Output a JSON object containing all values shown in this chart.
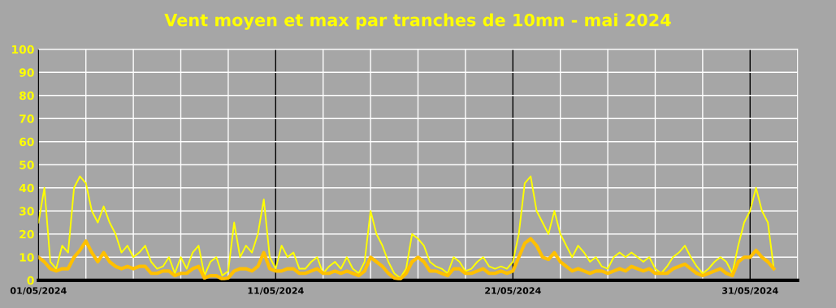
{
  "chart_data": {
    "type": "line",
    "title": "Vent moyen et max par tranches de 10mn - mai 2024",
    "x": [
      "2024-05-01T00:00",
      "2024-05-01T06:00",
      "2024-05-01T12:00",
      "2024-05-01T18:00",
      "2024-05-02T00:00",
      "2024-05-02T06:00",
      "2024-05-02T12:00",
      "2024-05-02T18:00",
      "2024-05-03T00:00",
      "2024-05-03T06:00",
      "2024-05-03T12:00",
      "2024-05-03T18:00",
      "2024-05-04T00:00",
      "2024-05-04T06:00",
      "2024-05-04T12:00",
      "2024-05-04T18:00",
      "2024-05-05T00:00",
      "2024-05-05T06:00",
      "2024-05-05T12:00",
      "2024-05-05T18:00",
      "2024-05-06T00:00",
      "2024-05-06T06:00",
      "2024-05-06T12:00",
      "2024-05-06T18:00",
      "2024-05-07T00:00",
      "2024-05-07T06:00",
      "2024-05-07T12:00",
      "2024-05-07T18:00",
      "2024-05-08T00:00",
      "2024-05-08T06:00",
      "2024-05-08T12:00",
      "2024-05-08T18:00",
      "2024-05-09T00:00",
      "2024-05-09T06:00",
      "2024-05-09T12:00",
      "2024-05-09T18:00",
      "2024-05-10T00:00",
      "2024-05-10T06:00",
      "2024-05-10T12:00",
      "2024-05-10T18:00",
      "2024-05-11T00:00",
      "2024-05-11T06:00",
      "2024-05-11T12:00",
      "2024-05-11T18:00",
      "2024-05-12T00:00",
      "2024-05-12T06:00",
      "2024-05-12T12:00",
      "2024-05-12T18:00",
      "2024-05-13T00:00",
      "2024-05-13T06:00",
      "2024-05-13T12:00",
      "2024-05-13T18:00",
      "2024-05-14T00:00",
      "2024-05-14T06:00",
      "2024-05-14T12:00",
      "2024-05-14T18:00",
      "2024-05-15T00:00",
      "2024-05-15T06:00",
      "2024-05-15T12:00",
      "2024-05-15T18:00",
      "2024-05-16T00:00",
      "2024-05-16T06:00",
      "2024-05-16T12:00",
      "2024-05-16T18:00",
      "2024-05-17T00:00",
      "2024-05-17T06:00",
      "2024-05-17T12:00",
      "2024-05-17T18:00",
      "2024-05-18T00:00",
      "2024-05-18T06:00",
      "2024-05-18T12:00",
      "2024-05-18T18:00",
      "2024-05-19T00:00",
      "2024-05-19T06:00",
      "2024-05-19T12:00",
      "2024-05-19T18:00",
      "2024-05-20T00:00",
      "2024-05-20T06:00",
      "2024-05-20T12:00",
      "2024-05-20T18:00",
      "2024-05-21T00:00",
      "2024-05-21T06:00",
      "2024-05-21T12:00",
      "2024-05-21T18:00",
      "2024-05-22T00:00",
      "2024-05-22T06:00",
      "2024-05-22T12:00",
      "2024-05-22T18:00",
      "2024-05-23T00:00",
      "2024-05-23T06:00",
      "2024-05-23T12:00",
      "2024-05-23T18:00",
      "2024-05-24T00:00",
      "2024-05-24T06:00",
      "2024-05-24T12:00",
      "2024-05-24T18:00",
      "2024-05-25T00:00",
      "2024-05-25T06:00",
      "2024-05-25T12:00",
      "2024-05-25T18:00",
      "2024-05-26T00:00",
      "2024-05-26T06:00",
      "2024-05-26T12:00",
      "2024-05-26T18:00",
      "2024-05-27T00:00",
      "2024-05-27T06:00",
      "2024-05-27T12:00",
      "2024-05-27T18:00",
      "2024-05-28T00:00",
      "2024-05-28T06:00",
      "2024-05-28T12:00",
      "2024-05-28T18:00",
      "2024-05-29T00:00",
      "2024-05-29T06:00",
      "2024-05-29T12:00",
      "2024-05-29T18:00",
      "2024-05-30T00:00",
      "2024-05-30T06:00",
      "2024-05-30T12:00",
      "2024-05-30T18:00",
      "2024-05-31T00:00",
      "2024-05-31T06:00",
      "2024-05-31T12:00",
      "2024-05-31T18:00",
      "2024-06-01T00:00"
    ],
    "series": [
      {
        "color": "#ffff00",
        "values": [
          25,
          40,
          8,
          5,
          15,
          12,
          40,
          45,
          42,
          30,
          25,
          32,
          25,
          20,
          12,
          15,
          10,
          12,
          15,
          8,
          5,
          6,
          10,
          3,
          10,
          5,
          12,
          15,
          2,
          8,
          10,
          2,
          4,
          25,
          10,
          15,
          12,
          20,
          35,
          10,
          5,
          15,
          10,
          12,
          5,
          5,
          8,
          10,
          3,
          6,
          8,
          5,
          10,
          5,
          3,
          8,
          30,
          20,
          15,
          8,
          3,
          1,
          5,
          20,
          18,
          15,
          8,
          6,
          5,
          3,
          10,
          8,
          4,
          5,
          8,
          10,
          6,
          5,
          6,
          5,
          8,
          20,
          42,
          45,
          30,
          25,
          20,
          30,
          20,
          15,
          10,
          15,
          12,
          8,
          10,
          6,
          5,
          10,
          12,
          10,
          12,
          10,
          8,
          10,
          5,
          3,
          6,
          10,
          12,
          15,
          10,
          6,
          3,
          5,
          8,
          10,
          8,
          3,
          15,
          25,
          30,
          40,
          30,
          25,
          5
        ]
      },
      {
        "color": "#ffc000",
        "values": [
          10,
          8,
          5,
          4,
          5,
          5,
          10,
          13,
          17,
          12,
          8,
          12,
          8,
          6,
          5,
          6,
          5,
          6,
          6,
          3,
          3,
          4,
          4,
          2,
          3,
          3,
          5,
          6,
          1,
          2,
          2,
          0.5,
          1,
          4,
          5,
          5,
          4,
          6,
          12,
          5,
          4,
          4,
          5,
          5,
          3,
          3,
          4,
          5,
          3,
          3,
          4,
          3,
          4,
          3,
          2,
          4,
          10,
          8,
          6,
          3,
          1,
          0.5,
          3,
          8,
          10,
          8,
          4,
          4,
          3,
          2,
          5,
          5,
          3,
          3,
          4,
          5,
          3,
          3,
          4,
          3,
          4,
          10,
          16,
          18,
          15,
          10,
          9,
          12,
          8,
          6,
          4,
          5,
          4,
          3,
          4,
          4,
          3,
          4,
          5,
          4,
          6,
          5,
          4,
          5,
          3,
          3,
          3,
          5,
          6,
          7,
          5,
          3,
          2,
          3,
          4,
          5,
          3,
          2,
          8,
          10,
          10,
          13,
          10,
          8,
          5
        ]
      }
    ],
    "xlim": [
      "2024-05-01T00:00",
      "2024-06-02T00:00"
    ],
    "xticks": [
      {
        "value": "2024-05-01",
        "label": "01/05/2024"
      },
      {
        "value": "2024-05-03",
        "label": null
      },
      {
        "value": "2024-05-05",
        "label": null
      },
      {
        "value": "2024-05-07",
        "label": null
      },
      {
        "value": "2024-05-09",
        "label": null
      },
      {
        "value": "2024-05-11",
        "label": "11/05/2024"
      },
      {
        "value": "2024-05-13",
        "label": null
      },
      {
        "value": "2024-05-15",
        "label": null
      },
      {
        "value": "2024-05-17",
        "label": null
      },
      {
        "value": "2024-05-19",
        "label": null
      },
      {
        "value": "2024-05-21",
        "label": "21/05/2024"
      },
      {
        "value": "2024-05-23",
        "label": null
      },
      {
        "value": "2024-05-25",
        "label": null
      },
      {
        "value": "2024-05-27",
        "label": null
      },
      {
        "value": "2024-05-29",
        "label": null
      },
      {
        "value": "2024-05-31",
        "label": "31/05/2024"
      }
    ],
    "ylim": [
      0,
      100
    ],
    "yticks": [
      0,
      10,
      20,
      30,
      40,
      50,
      60,
      70,
      80,
      90,
      100
    ],
    "grid": true,
    "legend": false,
    "marker": "none",
    "line_style": "solid"
  }
}
